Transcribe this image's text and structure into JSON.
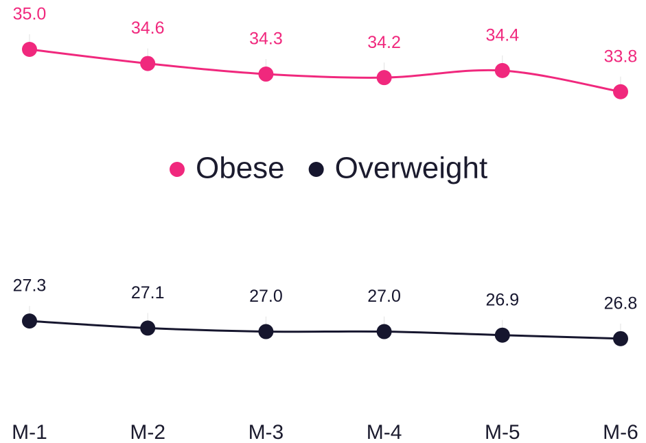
{
  "chart_data": {
    "type": "line",
    "categories": [
      "M-1",
      "M-2",
      "M-3",
      "M-4",
      "M-5",
      "M-6"
    ],
    "series": [
      {
        "name": "Obese",
        "color": "#f0287d",
        "values": [
          35.0,
          34.6,
          34.3,
          34.2,
          34.4,
          33.8
        ],
        "value_labels": [
          "35.0",
          "34.6",
          "34.3",
          "34.2",
          "34.4",
          "33.8"
        ]
      },
      {
        "name": "Overweight",
        "color": "#16162e",
        "values": [
          27.3,
          27.1,
          27.0,
          27.0,
          26.9,
          26.8
        ],
        "value_labels": [
          "27.3",
          "27.1",
          "27.0",
          "27.0",
          "26.9",
          "26.8"
        ]
      }
    ],
    "ylim": [
      26,
      36.4
    ],
    "legend": "middle"
  }
}
